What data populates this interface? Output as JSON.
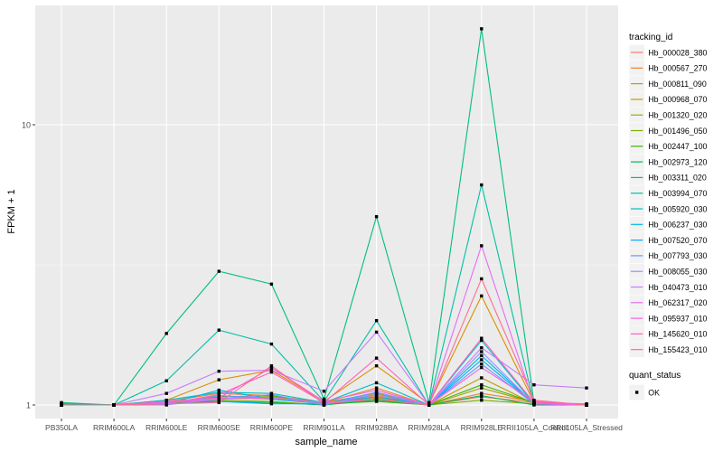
{
  "chart_data": {
    "type": "line",
    "xlabel": "sample_name",
    "ylabel": "FPKM + 1",
    "y_scale": "log10",
    "ylim": [
      0.95,
      22
    ],
    "y_ticks": [
      {
        "value": 1,
        "label": "1"
      },
      {
        "value": 10,
        "label": "10"
      }
    ],
    "grid": true,
    "legend_position": "right",
    "categories": [
      "PB350LA",
      "RRIM600LA",
      "RRIM600LE",
      "RRIM600SE",
      "RRIM600PE",
      "RRIM901LA",
      "RRIM928BA",
      "RRIM928LA",
      "RRIM928LE",
      "RRII105LA_Control",
      "RRII105LA_Stressed"
    ],
    "series": [
      {
        "name": "Hb_000028_380",
        "color": "#F8766D",
        "values": [
          1.0,
          1.0,
          1.02,
          1.06,
          1.05,
          1.01,
          1.08,
          1.0,
          1.07,
          1.02,
          1.0
        ]
      },
      {
        "name": "Hb_000567_270",
        "color": "#EA8331",
        "values": [
          1.01,
          1.0,
          1.03,
          1.1,
          1.08,
          1.02,
          1.15,
          1.0,
          1.1,
          1.03,
          1.0
        ]
      },
      {
        "name": "Hb_000811_090",
        "color": "#D89000",
        "values": [
          1.01,
          1.0,
          1.04,
          1.23,
          1.33,
          1.03,
          1.38,
          1.01,
          2.45,
          1.02,
          1.0
        ]
      },
      {
        "name": "Hb_000968_070",
        "color": "#C09B00",
        "values": [
          1.0,
          1.0,
          1.01,
          1.05,
          1.07,
          1.02,
          1.1,
          1.0,
          1.25,
          1.01,
          1.0
        ]
      },
      {
        "name": "Hb_001320_020",
        "color": "#A3A500",
        "values": [
          1.0,
          1.0,
          1.01,
          1.08,
          1.05,
          1.01,
          1.06,
          1.0,
          1.15,
          1.02,
          1.0
        ]
      },
      {
        "name": "Hb_001496_050",
        "color": "#7CAE00",
        "values": [
          1.0,
          1.0,
          1.02,
          1.04,
          1.03,
          1.0,
          1.05,
          1.0,
          1.04,
          1.01,
          1.0
        ]
      },
      {
        "name": "Hb_002447_100",
        "color": "#39B600",
        "values": [
          1.0,
          1.0,
          1.02,
          1.07,
          1.08,
          1.01,
          1.03,
          1.0,
          1.18,
          1.02,
          1.0
        ]
      },
      {
        "name": "Hb_002973_120",
        "color": "#00BB4E",
        "values": [
          1.0,
          1.0,
          1.01,
          1.03,
          1.02,
          1.0,
          1.04,
          1.0,
          1.08,
          1.0,
          1.0
        ]
      },
      {
        "name": "Hb_003311_020",
        "color": "#00BF7D",
        "values": [
          1.02,
          1.0,
          1.8,
          3.0,
          2.7,
          1.05,
          4.7,
          1.02,
          22.0,
          1.02,
          1.0
        ]
      },
      {
        "name": "Hb_003994_070",
        "color": "#00C1A3",
        "values": [
          1.01,
          1.0,
          1.22,
          1.85,
          1.65,
          1.03,
          2.0,
          1.0,
          6.1,
          1.01,
          1.0
        ]
      },
      {
        "name": "Hb_005920_030",
        "color": "#00BFC4",
        "values": [
          1.0,
          1.0,
          1.04,
          1.11,
          1.1,
          1.02,
          1.2,
          1.0,
          1.7,
          1.01,
          1.0
        ]
      },
      {
        "name": "Hb_006237_030",
        "color": "#00B8E7",
        "values": [
          1.0,
          1.0,
          1.01,
          1.13,
          1.05,
          1.01,
          1.11,
          1.0,
          1.5,
          1.01,
          1.0
        ]
      },
      {
        "name": "Hb_007520_070",
        "color": "#00A9FF",
        "values": [
          1.0,
          1.0,
          1.03,
          1.03,
          1.01,
          1.01,
          1.07,
          1.0,
          1.45,
          1.01,
          1.0
        ]
      },
      {
        "name": "Hb_007793_030",
        "color": "#619CFF",
        "values": [
          1.0,
          1.0,
          1.01,
          1.08,
          1.06,
          1.01,
          1.09,
          1.0,
          1.4,
          1.01,
          1.0
        ]
      },
      {
        "name": "Hb_008055_030",
        "color": "#9590FF",
        "values": [
          1.0,
          1.0,
          1.0,
          1.05,
          1.09,
          1.0,
          1.11,
          1.0,
          1.55,
          1.01,
          1.0
        ]
      },
      {
        "name": "Hb_040473_010",
        "color": "#C77CFF",
        "values": [
          1.0,
          1.0,
          1.1,
          1.32,
          1.33,
          1.12,
          1.82,
          1.0,
          1.6,
          1.18,
          1.15
        ]
      },
      {
        "name": "Hb_062317_020",
        "color": "#E76BF3",
        "values": [
          1.0,
          1.0,
          1.02,
          1.05,
          1.06,
          1.02,
          1.05,
          1.0,
          3.7,
          1.01,
          1.0
        ]
      },
      {
        "name": "Hb_095937_010",
        "color": "#FA62DB",
        "values": [
          1.0,
          1.0,
          1.03,
          1.06,
          1.36,
          1.03,
          1.13,
          1.0,
          1.36,
          1.03,
          1.0
        ]
      },
      {
        "name": "Hb_145620_010",
        "color": "#FF62BC",
        "values": [
          1.0,
          1.0,
          1.01,
          1.09,
          1.31,
          1.02,
          1.47,
          1.0,
          1.73,
          1.02,
          1.01
        ]
      },
      {
        "name": "Hb_155423_010",
        "color": "#FF6C91",
        "values": [
          1.0,
          1.0,
          1.01,
          1.02,
          1.38,
          1.01,
          1.05,
          1.0,
          2.82,
          1.04,
          1.0
        ]
      }
    ],
    "legends": [
      {
        "title": "tracking_id",
        "kind": "line"
      },
      {
        "title": "quant_status",
        "kind": "point",
        "entries": [
          "OK"
        ]
      }
    ]
  }
}
